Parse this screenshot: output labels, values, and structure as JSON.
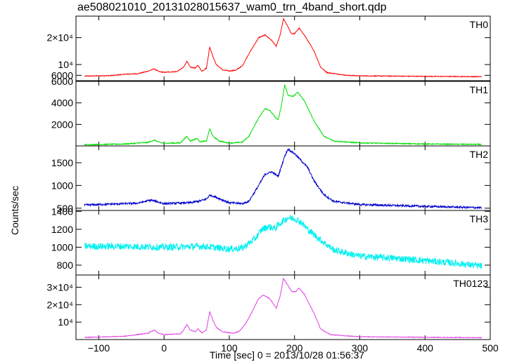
{
  "chart_data": {
    "type": "line",
    "title": "ae508021010_20131028015637_wam0_trn_4band_short.qdp",
    "xlabel": "Time [sec] 0 = 2013/10/28 01:56:37",
    "ylabel": "Counts/sec",
    "xlim": [
      -135,
      500
    ],
    "x_ticks": [
      -100,
      0,
      100,
      200,
      300,
      400,
      500
    ],
    "x_tick_labels": [
      "−100",
      "0",
      "100",
      "200",
      "300",
      "400",
      "500"
    ],
    "grid": false,
    "panels": [
      {
        "name": "TH0",
        "color": "#ff0000",
        "ylim": [
          4000,
          28000
        ],
        "noise": 150,
        "y_ticks": [
          {
            "v": 6000,
            "label": "6000"
          },
          {
            "v": 10000,
            "label": "10⁴"
          },
          {
            "v": 20000,
            "label": "2×10⁴"
          }
        ],
        "points": [
          [
            -122,
            5700
          ],
          [
            -80,
            5900
          ],
          [
            -60,
            6400
          ],
          [
            -40,
            6600
          ],
          [
            -25,
            7500
          ],
          [
            -15,
            8400
          ],
          [
            -8,
            7400
          ],
          [
            0,
            7100
          ],
          [
            20,
            7400
          ],
          [
            30,
            9000
          ],
          [
            35,
            11300
          ],
          [
            40,
            9000
          ],
          [
            48,
            8700
          ],
          [
            52,
            9700
          ],
          [
            58,
            7500
          ],
          [
            65,
            8700
          ],
          [
            70,
            16500
          ],
          [
            75,
            13000
          ],
          [
            80,
            10000
          ],
          [
            90,
            8000
          ],
          [
            100,
            7600
          ],
          [
            110,
            7900
          ],
          [
            120,
            9500
          ],
          [
            130,
            14000
          ],
          [
            145,
            20000
          ],
          [
            155,
            21000
          ],
          [
            165,
            19000
          ],
          [
            172,
            16800
          ],
          [
            178,
            21000
          ],
          [
            183,
            27000
          ],
          [
            190,
            24000
          ],
          [
            195,
            21500
          ],
          [
            200,
            21500
          ],
          [
            207,
            23500
          ],
          [
            215,
            21000
          ],
          [
            230,
            15000
          ],
          [
            240,
            9000
          ],
          [
            250,
            7000
          ],
          [
            280,
            6000
          ],
          [
            300,
            5800
          ],
          [
            400,
            5600
          ],
          [
            485,
            5500
          ]
        ]
      },
      {
        "name": "TH1",
        "color": "#00dd00",
        "ylim": [
          0,
          6000
        ],
        "noise": 45,
        "y_ticks": [
          {
            "v": 2000,
            "label": "2000"
          },
          {
            "v": 4000,
            "label": "4000"
          },
          {
            "v": 6000,
            "label": "6000"
          }
        ],
        "points": [
          [
            -122,
            110
          ],
          [
            -60,
            180
          ],
          [
            -25,
            320
          ],
          [
            -15,
            550
          ],
          [
            -8,
            350
          ],
          [
            0,
            250
          ],
          [
            25,
            280
          ],
          [
            35,
            900
          ],
          [
            40,
            450
          ],
          [
            50,
            700
          ],
          [
            55,
            400
          ],
          [
            65,
            450
          ],
          [
            70,
            1600
          ],
          [
            75,
            900
          ],
          [
            85,
            450
          ],
          [
            100,
            250
          ],
          [
            120,
            350
          ],
          [
            130,
            900
          ],
          [
            145,
            2600
          ],
          [
            155,
            3500
          ],
          [
            162,
            3300
          ],
          [
            170,
            2700
          ],
          [
            175,
            2400
          ],
          [
            180,
            3800
          ],
          [
            185,
            5700
          ],
          [
            190,
            4700
          ],
          [
            198,
            4600
          ],
          [
            205,
            5000
          ],
          [
            215,
            4200
          ],
          [
            230,
            2300
          ],
          [
            245,
            900
          ],
          [
            260,
            450
          ],
          [
            300,
            280
          ],
          [
            400,
            180
          ],
          [
            485,
            140
          ]
        ]
      },
      {
        "name": "TH2",
        "color": "#0000cc",
        "ylim": [
          450,
          1870
        ],
        "noise": 22,
        "y_ticks": [
          {
            "v": 500,
            "label": "500"
          },
          {
            "v": 1000,
            "label": "1000"
          },
          {
            "v": 1500,
            "label": "1500"
          }
        ],
        "points": [
          [
            -122,
            570
          ],
          [
            -60,
            600
          ],
          [
            -40,
            610
          ],
          [
            -20,
            680
          ],
          [
            -10,
            640
          ],
          [
            0,
            600
          ],
          [
            40,
            620
          ],
          [
            55,
            660
          ],
          [
            65,
            700
          ],
          [
            70,
            790
          ],
          [
            80,
            740
          ],
          [
            100,
            620
          ],
          [
            120,
            600
          ],
          [
            130,
            650
          ],
          [
            145,
            1000
          ],
          [
            155,
            1250
          ],
          [
            165,
            1300
          ],
          [
            175,
            1200
          ],
          [
            185,
            1650
          ],
          [
            190,
            1800
          ],
          [
            200,
            1700
          ],
          [
            210,
            1550
          ],
          [
            220,
            1400
          ],
          [
            230,
            1100
          ],
          [
            245,
            800
          ],
          [
            260,
            650
          ],
          [
            300,
            580
          ],
          [
            400,
            540
          ],
          [
            485,
            510
          ]
        ]
      },
      {
        "name": "TH3",
        "color": "#00f0f0",
        "ylim": [
          690,
          1410
        ],
        "noise": 38,
        "y_ticks": [
          {
            "v": 800,
            "label": "800"
          },
          {
            "v": 1000,
            "label": "1000"
          },
          {
            "v": 1200,
            "label": "1200"
          },
          {
            "v": 1400,
            "label": "1400"
          }
        ],
        "points": [
          [
            -122,
            1010
          ],
          [
            -60,
            1010
          ],
          [
            0,
            1000
          ],
          [
            60,
            1010
          ],
          [
            100,
            980
          ],
          [
            120,
            990
          ],
          [
            140,
            1100
          ],
          [
            150,
            1200
          ],
          [
            160,
            1230
          ],
          [
            170,
            1210
          ],
          [
            180,
            1280
          ],
          [
            190,
            1330
          ],
          [
            200,
            1320
          ],
          [
            210,
            1280
          ],
          [
            220,
            1200
          ],
          [
            240,
            1080
          ],
          [
            260,
            970
          ],
          [
            300,
            900
          ],
          [
            350,
            880
          ],
          [
            400,
            850
          ],
          [
            450,
            820
          ],
          [
            485,
            790
          ]
        ]
      },
      {
        "name": "TH0123",
        "color": "#e040e0",
        "ylim": [
          0,
          37000
        ],
        "noise": 180,
        "y_ticks": [
          {
            "v": 10000,
            "label": "10⁴"
          },
          {
            "v": 20000,
            "label": "2×10⁴"
          },
          {
            "v": 30000,
            "label": "3×10⁴"
          }
        ],
        "points": [
          [
            -122,
            1200
          ],
          [
            -60,
            1900
          ],
          [
            -25,
            3600
          ],
          [
            -15,
            5500
          ],
          [
            -8,
            3500
          ],
          [
            0,
            2800
          ],
          [
            25,
            3300
          ],
          [
            30,
            5500
          ],
          [
            35,
            8700
          ],
          [
            40,
            5500
          ],
          [
            48,
            4500
          ],
          [
            52,
            6200
          ],
          [
            58,
            3800
          ],
          [
            65,
            5500
          ],
          [
            70,
            16000
          ],
          [
            75,
            11000
          ],
          [
            80,
            7000
          ],
          [
            90,
            4500
          ],
          [
            105,
            3600
          ],
          [
            115,
            4600
          ],
          [
            125,
            9000
          ],
          [
            135,
            16000
          ],
          [
            145,
            23500
          ],
          [
            152,
            25500
          ],
          [
            162,
            23500
          ],
          [
            172,
            18000
          ],
          [
            178,
            25000
          ],
          [
            183,
            35000
          ],
          [
            190,
            31000
          ],
          [
            196,
            27500
          ],
          [
            202,
            27500
          ],
          [
            207,
            29500
          ],
          [
            215,
            26000
          ],
          [
            230,
            15000
          ],
          [
            240,
            6000
          ],
          [
            255,
            2800
          ],
          [
            300,
            1600
          ],
          [
            400,
            1300
          ],
          [
            485,
            1100
          ]
        ]
      }
    ]
  }
}
